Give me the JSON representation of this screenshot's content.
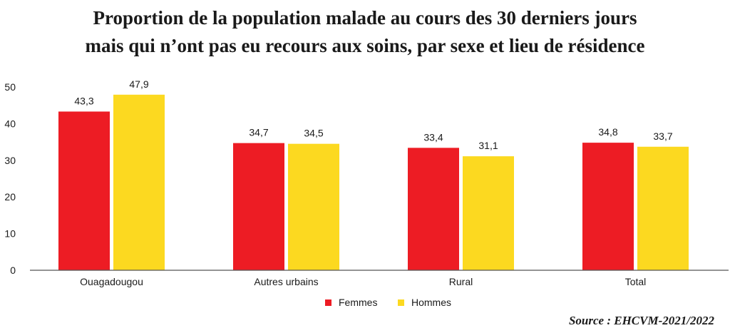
{
  "chart_data": {
    "type": "bar",
    "title": "Proportion de la population malade au cours des 30 derniers jours mais qui n’ont pas eu recours aux soins, par sexe et lieu de résidence",
    "title_lines": [
      "Proportion de la population malade au cours des 30 derniers jours",
      "mais qui n’ont pas eu recours aux soins, par sexe et lieu de résidence"
    ],
    "categories": [
      "Ouagadougou",
      "Autres urbains",
      "Rural",
      "Total"
    ],
    "series": [
      {
        "name": "Femmes",
        "color": "#ed1c24",
        "values": [
          43.3,
          34.7,
          33.4,
          34.8
        ],
        "labels": [
          "43,3",
          "34,7",
          "33,4",
          "34,8"
        ]
      },
      {
        "name": "Hommes",
        "color": "#fcd920",
        "values": [
          47.9,
          34.5,
          31.1,
          33.7
        ],
        "labels": [
          "47,9",
          "34,5",
          "31,1",
          "33,7"
        ]
      }
    ],
    "yticks": [
      "0",
      "10",
      "20",
      "30",
      "40",
      "50"
    ],
    "ylim": [
      0,
      50
    ],
    "grid": false,
    "legend_position": "bottom-center"
  },
  "source": "Source : EHCVM-2021/2022"
}
